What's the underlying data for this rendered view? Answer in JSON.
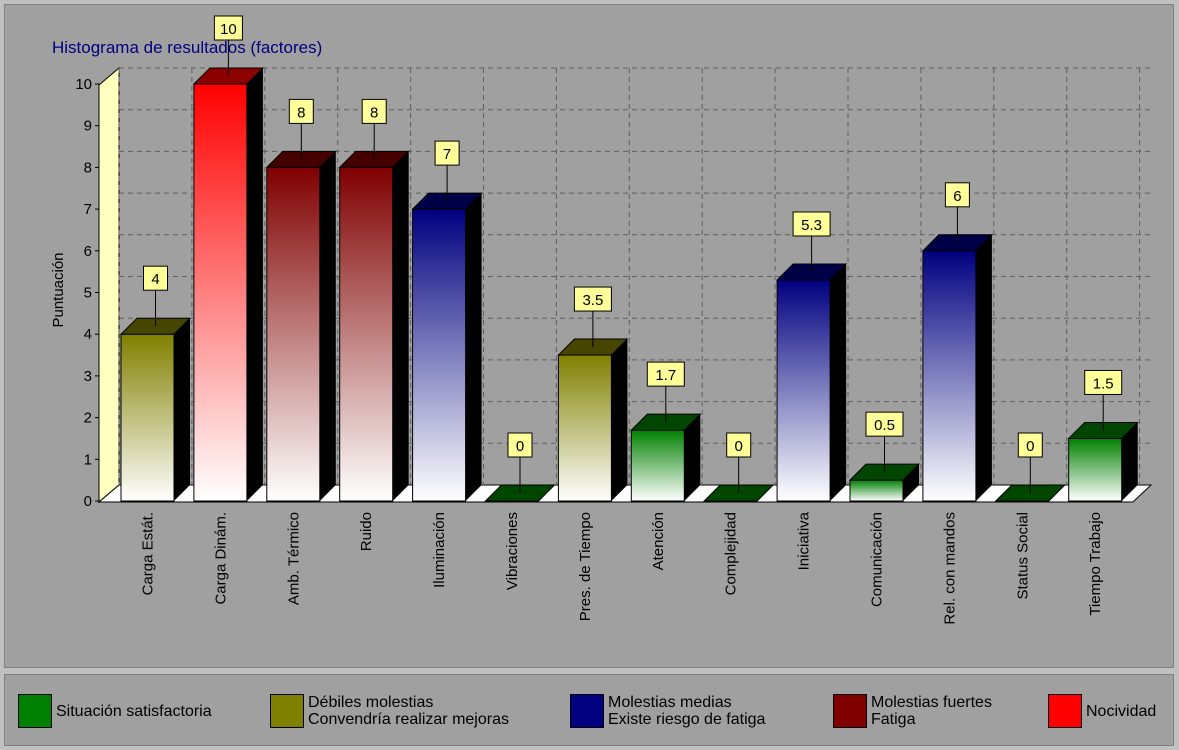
{
  "chart_data": {
    "type": "bar",
    "title": "Histograma de resultados (factores)",
    "ylabel": "Puntuación",
    "xlabel": "",
    "ylim": [
      0,
      10
    ],
    "yticks": [
      0,
      1,
      2,
      3,
      4,
      5,
      6,
      7,
      8,
      9,
      10
    ],
    "grid": true,
    "categories": [
      "Carga Estát.",
      "Carga Dinám.",
      "Amb. Térmico",
      "Ruido",
      "Iluminación",
      "Vibraciones",
      "Pres. de Tiempo",
      "Atención",
      "Complejidad",
      "Iniciativa",
      "Comunicación",
      "Rel. con mandos",
      "Status Social",
      "Tiempo Trabajo"
    ],
    "values": [
      4,
      10,
      8,
      8,
      7,
      0,
      3.5,
      1.7,
      0,
      5.3,
      0.5,
      6,
      0,
      1.5
    ],
    "value_labels": [
      "4",
      "10",
      "8",
      "8",
      "7",
      "0",
      "3.5",
      "1.7",
      "0",
      "5.3",
      "0.5",
      "6",
      "0",
      "1.5"
    ],
    "bar_levels": [
      "debiles",
      "nocividad",
      "fuertes",
      "fuertes",
      "medias",
      "satisfactoria",
      "debiles",
      "satisfactoria",
      "satisfactoria",
      "medias",
      "satisfactoria",
      "medias",
      "satisfactoria",
      "satisfactoria"
    ]
  },
  "level_colors": {
    "satisfactoria": "#008000",
    "debiles": "#808000",
    "medias": "#000080",
    "fuertes": "#800000",
    "nocividad": "#ff0000"
  },
  "legend": [
    {
      "level": "satisfactoria",
      "color": "#008000",
      "line1": "Situación satisfactoria",
      "line2": ""
    },
    {
      "level": "debiles",
      "color": "#808000",
      "line1": "Débiles molestias",
      "line2": "Convendría realizar mejoras"
    },
    {
      "level": "medias",
      "color": "#000080",
      "line1": "Molestias medias",
      "line2": "Existe riesgo de fatiga"
    },
    {
      "level": "fuertes",
      "color": "#800000",
      "line1": "Molestias fuertes",
      "line2": "Fatiga"
    },
    {
      "level": "nocividad",
      "color": "#ff0000",
      "line1": "Nocividad",
      "line2": ""
    }
  ]
}
